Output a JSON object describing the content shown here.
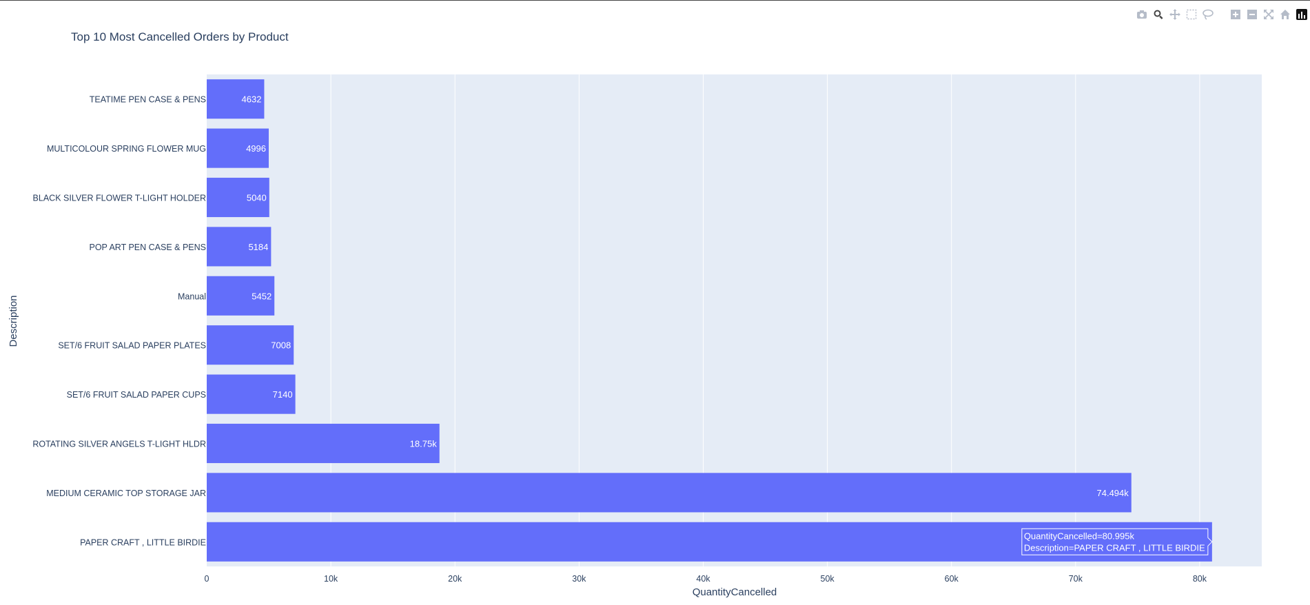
{
  "chart_data": {
    "type": "bar",
    "orientation": "horizontal",
    "title": "Top 10 Most Cancelled Orders by Product",
    "xlabel": "QuantityCancelled",
    "ylabel": "Description",
    "xlim": [
      0,
      85000
    ],
    "x_ticks": [
      0,
      10000,
      20000,
      30000,
      40000,
      50000,
      60000,
      70000,
      80000
    ],
    "x_tick_labels": [
      "0",
      "10k",
      "20k",
      "30k",
      "40k",
      "50k",
      "60k",
      "70k",
      "80k"
    ],
    "categories": [
      "TEATIME PEN CASE & PENS",
      "MULTICOLOUR SPRING FLOWER MUG",
      "BLACK SILVER FLOWER T-LIGHT HOLDER",
      "POP ART PEN CASE & PENS",
      "Manual",
      "SET/6 FRUIT SALAD  PAPER PLATES",
      "SET/6 FRUIT SALAD PAPER CUPS",
      "ROTATING SILVER ANGELS T-LIGHT HLDR",
      "MEDIUM CERAMIC TOP STORAGE JAR",
      "PAPER CRAFT , LITTLE BIRDIE"
    ],
    "values": [
      4632,
      4996,
      5040,
      5184,
      5452,
      7008,
      7140,
      18750,
      74494,
      80995
    ],
    "data_labels": [
      "4632",
      "4996",
      "5040",
      "5184",
      "5452",
      "7008",
      "7140",
      "18.75k",
      "74.494k",
      ""
    ],
    "bar_color": "#636efa",
    "plot_bg": "#e5ecf6",
    "grid": true,
    "tooltip": {
      "line1": "QuantityCancelled=80.995k",
      "line2": "Description=PAPER CRAFT , LITTLE BIRDIE"
    }
  },
  "modebar": {
    "icons": [
      "camera-icon",
      "zoom-icon",
      "pan-icon",
      "box-select-icon",
      "lasso-icon",
      "zoom-in-icon",
      "zoom-out-icon",
      "autoscale-icon",
      "reset-axes-icon",
      "plotly-logo-icon"
    ]
  }
}
